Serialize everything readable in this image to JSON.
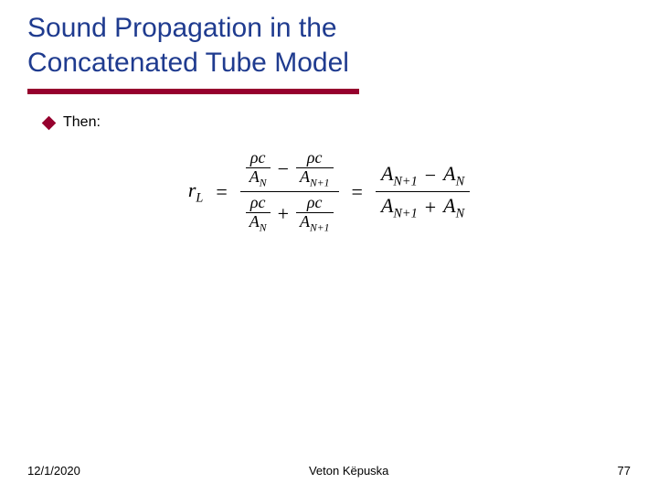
{
  "title_line1": "Sound Propagation in the",
  "title_line2": "Concatenated Tube Model",
  "bullet": "Then:",
  "eq": {
    "lhs_var": "r",
    "lhs_sub": "L",
    "eq_sign": "=",
    "rho_c": "ρc",
    "A": "A",
    "sub_N": "N",
    "sub_N1": "N+1",
    "minus": "−",
    "plus": "+"
  },
  "footer": {
    "date": "12/1/2020",
    "author": "Veton Këpuska",
    "page": "77"
  },
  "colors": {
    "title": "#1f3b8f",
    "rule": "#96002e",
    "bullet": "#96002e",
    "text": "#000000",
    "background": "#ffffff"
  },
  "fonts": {
    "title_size": 30,
    "body_size": 16,
    "equation_size": 22,
    "footer_size": 13
  }
}
